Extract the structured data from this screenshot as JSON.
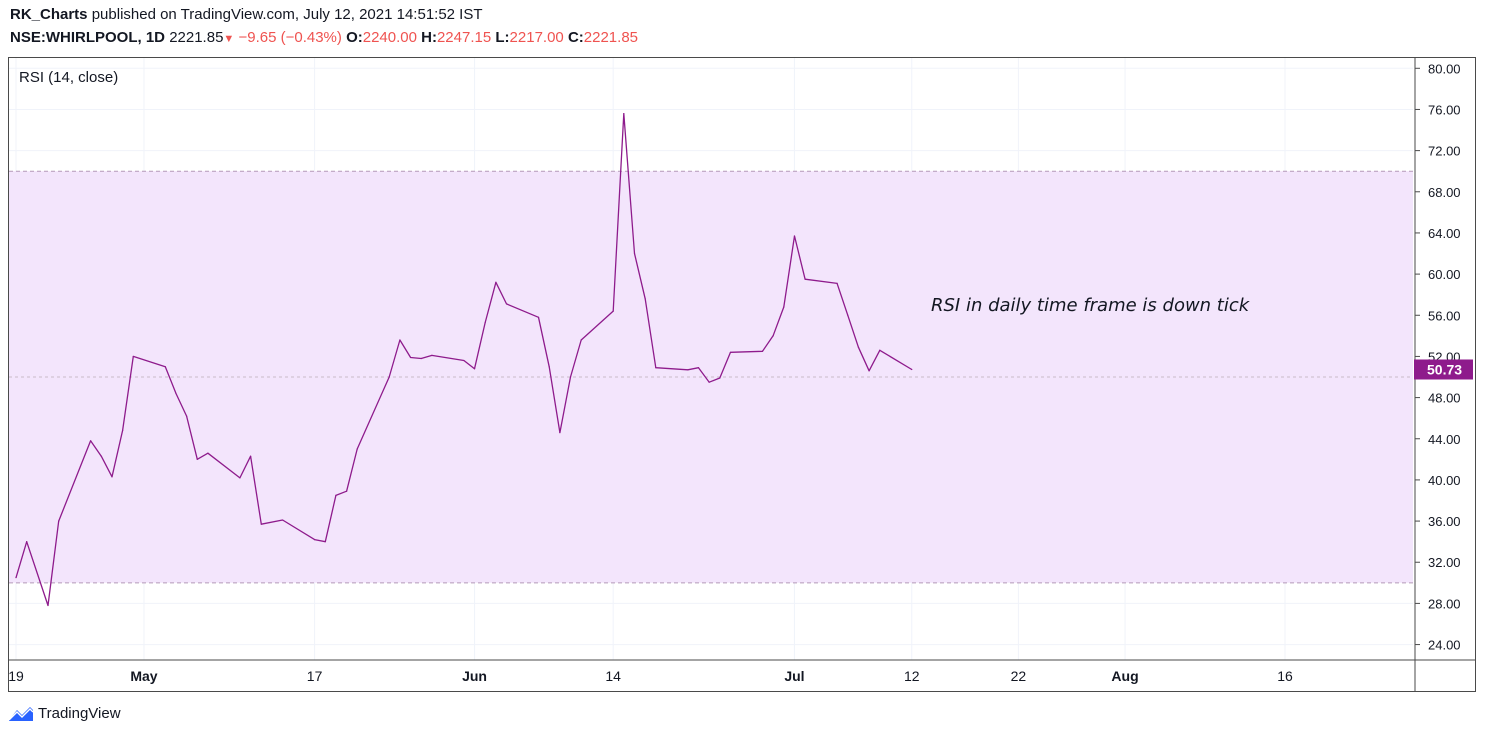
{
  "header": {
    "author": "RK_Charts",
    "published": "published on TradingView.com, July 12, 2021 14:51:52 IST",
    "symbol": "NSE:WHIRLPOOL, 1D",
    "last": "2221.85",
    "change_arrow": "▼",
    "change": "−9.65 (−0.43%)",
    "open_label": "O:",
    "open": "2240.00",
    "high_label": "H:",
    "high": "2247.15",
    "low_label": "L:",
    "low": "2217.00",
    "close_label": "C:",
    "close": "2221.85"
  },
  "footer": {
    "brand": "TradingView"
  },
  "colors": {
    "line": "#8e1b8c",
    "band_fill": "#f3e5fc",
    "band_line": "#b49ab8",
    "price_tag_bg": "#8e1b8c",
    "down": "#ef5350"
  },
  "chart_data": {
    "type": "line",
    "title": "RSI (14, close)",
    "annotation": "RSI in daily time frame is down tick",
    "last_value_label": "50.73",
    "ylim": [
      22.5,
      81.0
    ],
    "y_ticks": [
      80.0,
      76.0,
      72.0,
      68.0,
      64.0,
      60.0,
      56.0,
      52.0,
      48.0,
      44.0,
      40.0,
      36.0,
      32.0,
      28.0,
      24.0
    ],
    "y_tick_labels": [
      "80.00",
      "76.00",
      "72.00",
      "68.00",
      "64.00",
      "60.00",
      "56.00",
      "52.00",
      "48.00",
      "44.00",
      "40.00",
      "36.00",
      "32.00",
      "28.00",
      "24.00"
    ],
    "band": {
      "upper": 70,
      "lower": 30,
      "middle": 50
    },
    "x_start": "2021-04-19",
    "x_end": "2021-08-29",
    "x_ticks": [
      {
        "date": "2021-04-19",
        "label": "19",
        "bold": false
      },
      {
        "date": "2021-05-01",
        "label": "May",
        "bold": true
      },
      {
        "date": "2021-05-17",
        "label": "17",
        "bold": false
      },
      {
        "date": "2021-06-01",
        "label": "Jun",
        "bold": true
      },
      {
        "date": "2021-06-14",
        "label": "14",
        "bold": false
      },
      {
        "date": "2021-07-01",
        "label": "Jul",
        "bold": true
      },
      {
        "date": "2021-07-12",
        "label": "12",
        "bold": false
      },
      {
        "date": "2021-07-22",
        "label": "22",
        "bold": false
      },
      {
        "date": "2021-08-01",
        "label": "Aug",
        "bold": true
      },
      {
        "date": "2021-08-16",
        "label": "16",
        "bold": false
      }
    ],
    "series": [
      {
        "points": [
          [
            "2021-04-19",
            30.5
          ],
          [
            "2021-04-20",
            34.0
          ],
          [
            "2021-04-22",
            27.8
          ],
          [
            "2021-04-23",
            36.0
          ],
          [
            "2021-04-26",
            43.8
          ],
          [
            "2021-04-27",
            42.3
          ],
          [
            "2021-04-28",
            40.3
          ],
          [
            "2021-04-29",
            44.8
          ],
          [
            "2021-04-30",
            52.0
          ],
          [
            "2021-05-03",
            51.0
          ],
          [
            "2021-05-04",
            48.4
          ],
          [
            "2021-05-05",
            46.2
          ],
          [
            "2021-05-06",
            42.0
          ],
          [
            "2021-05-07",
            42.6
          ],
          [
            "2021-05-10",
            40.2
          ],
          [
            "2021-05-11",
            42.3
          ],
          [
            "2021-05-12",
            35.7
          ],
          [
            "2021-05-14",
            36.1
          ],
          [
            "2021-05-17",
            34.2
          ],
          [
            "2021-05-18",
            34.0
          ],
          [
            "2021-05-19",
            38.5
          ],
          [
            "2021-05-20",
            38.9
          ],
          [
            "2021-05-21",
            43.0
          ],
          [
            "2021-05-24",
            50.0
          ],
          [
            "2021-05-25",
            53.6
          ],
          [
            "2021-05-26",
            51.9
          ],
          [
            "2021-05-27",
            51.8
          ],
          [
            "2021-05-28",
            52.1
          ],
          [
            "2021-05-31",
            51.6
          ],
          [
            "2021-06-01",
            50.8
          ],
          [
            "2021-06-02",
            55.3
          ],
          [
            "2021-06-03",
            59.2
          ],
          [
            "2021-06-04",
            57.1
          ],
          [
            "2021-06-07",
            55.8
          ],
          [
            "2021-06-08",
            51.0
          ],
          [
            "2021-06-09",
            44.6
          ],
          [
            "2021-06-10",
            50.0
          ],
          [
            "2021-06-11",
            53.6
          ],
          [
            "2021-06-14",
            56.4
          ],
          [
            "2021-06-15",
            75.6
          ],
          [
            "2021-06-16",
            62.0
          ],
          [
            "2021-06-17",
            57.6
          ],
          [
            "2021-06-18",
            50.9
          ],
          [
            "2021-06-21",
            50.7
          ],
          [
            "2021-06-22",
            50.9
          ],
          [
            "2021-06-23",
            49.5
          ],
          [
            "2021-06-24",
            49.9
          ],
          [
            "2021-06-25",
            52.4
          ],
          [
            "2021-06-28",
            52.5
          ],
          [
            "2021-06-29",
            54.0
          ],
          [
            "2021-06-30",
            56.8
          ],
          [
            "2021-07-01",
            63.7
          ],
          [
            "2021-07-02",
            59.5
          ],
          [
            "2021-07-05",
            59.1
          ],
          [
            "2021-07-06",
            56.0
          ],
          [
            "2021-07-07",
            52.9
          ],
          [
            "2021-07-08",
            50.6
          ],
          [
            "2021-07-09",
            52.6
          ],
          [
            "2021-07-12",
            50.73
          ]
        ]
      }
    ]
  }
}
